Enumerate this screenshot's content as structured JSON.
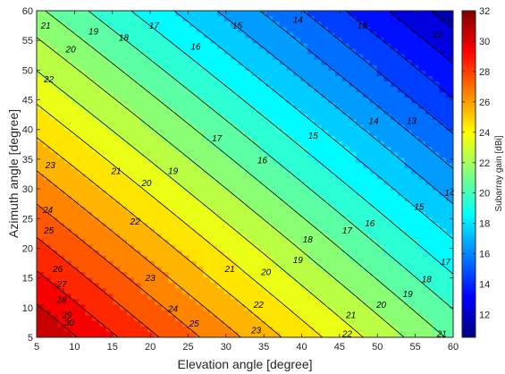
{
  "chart_data": {
    "type": "heatmap",
    "subtype": "filled-contour",
    "colormap": "jet",
    "xlabel": "Elevation angle [degree]",
    "ylabel": "Azimuth angle [degree]",
    "colorbar_label": "Subarray gain [dBi]",
    "xlim": [
      5,
      60
    ],
    "ylim": [
      5,
      60
    ],
    "clim": [
      10.5,
      32
    ],
    "x_ticks": [
      5,
      10,
      15,
      20,
      25,
      30,
      35,
      40,
      45,
      50,
      55,
      60
    ],
    "y_ticks": [
      5,
      10,
      15,
      20,
      25,
      30,
      35,
      40,
      45,
      50,
      55,
      60
    ],
    "colorbar_ticks": [
      12,
      14,
      16,
      18,
      20,
      22,
      24,
      26,
      28,
      30,
      32
    ],
    "contour_levels": [
      12,
      13,
      14,
      15,
      16,
      17,
      18,
      19,
      20,
      21,
      22,
      23,
      24,
      25,
      26,
      27,
      28,
      29,
      30
    ],
    "corner_values": {
      "x5_y5": 31,
      "x60_y5": 20.8,
      "x5_y60": 21.2,
      "x60_y60": 11.5
    },
    "contour_labels": [
      {
        "text": "21",
        "x": 6.2,
        "y": 57.5
      },
      {
        "text": "20",
        "x": 9.5,
        "y": 53.5
      },
      {
        "text": "19",
        "x": 12.5,
        "y": 56.5
      },
      {
        "text": "18",
        "x": 16.5,
        "y": 55.5
      },
      {
        "text": "17",
        "x": 20.5,
        "y": 57.5
      },
      {
        "text": "16",
        "x": 26,
        "y": 54
      },
      {
        "text": "15",
        "x": 31.5,
        "y": 57.5
      },
      {
        "text": "14",
        "x": 39.5,
        "y": 58.5
      },
      {
        "text": "13",
        "x": 48,
        "y": 57.5
      },
      {
        "text": "12",
        "x": 58,
        "y": 56
      },
      {
        "text": "22",
        "x": 6.6,
        "y": 48.5
      },
      {
        "text": "23",
        "x": 6.8,
        "y": 34
      },
      {
        "text": "24",
        "x": 6.5,
        "y": 26.5
      },
      {
        "text": "25",
        "x": 6.6,
        "y": 23
      },
      {
        "text": "26",
        "x": 7.8,
        "y": 16.5
      },
      {
        "text": "27",
        "x": 8.3,
        "y": 14
      },
      {
        "text": "28",
        "x": 8.3,
        "y": 11.3
      },
      {
        "text": "29",
        "x": 9,
        "y": 8.8
      },
      {
        "text": "30",
        "x": 9.3,
        "y": 7.5
      },
      {
        "text": "21",
        "x": 15.5,
        "y": 33
      },
      {
        "text": "20",
        "x": 19.5,
        "y": 31
      },
      {
        "text": "19",
        "x": 23,
        "y": 33
      },
      {
        "text": "17",
        "x": 28.8,
        "y": 38.5
      },
      {
        "text": "16",
        "x": 34.8,
        "y": 34.8
      },
      {
        "text": "15",
        "x": 41.5,
        "y": 39
      },
      {
        "text": "14",
        "x": 49.5,
        "y": 41.5
      },
      {
        "text": "13",
        "x": 54.5,
        "y": 41.5
      },
      {
        "text": "22",
        "x": 18,
        "y": 24.5
      },
      {
        "text": "23",
        "x": 20,
        "y": 15
      },
      {
        "text": "21",
        "x": 30.5,
        "y": 16.5
      },
      {
        "text": "20",
        "x": 35.3,
        "y": 16
      },
      {
        "text": "19",
        "x": 39.5,
        "y": 18
      },
      {
        "text": "18",
        "x": 40.8,
        "y": 21.5
      },
      {
        "text": "17",
        "x": 46,
        "y": 23
      },
      {
        "text": "16",
        "x": 49,
        "y": 24.2
      },
      {
        "text": "15",
        "x": 55.5,
        "y": 27
      },
      {
        "text": "14",
        "x": 59.5,
        "y": 29.3
      },
      {
        "text": "24",
        "x": 23,
        "y": 9.8
      },
      {
        "text": "25",
        "x": 25.8,
        "y": 7.3
      },
      {
        "text": "22",
        "x": 34.3,
        "y": 10.5
      },
      {
        "text": "23",
        "x": 34,
        "y": 6.2
      },
      {
        "text": "21",
        "x": 46.5,
        "y": 8.8
      },
      {
        "text": "20",
        "x": 50.5,
        "y": 10.5
      },
      {
        "text": "19",
        "x": 54,
        "y": 12.3
      },
      {
        "text": "18",
        "x": 56.5,
        "y": 14.8
      },
      {
        "text": "17",
        "x": 59,
        "y": 17.7
      },
      {
        "text": "22",
        "x": 46,
        "y": 5.6
      },
      {
        "text": "21",
        "x": 58.5,
        "y": 5.6
      }
    ]
  }
}
